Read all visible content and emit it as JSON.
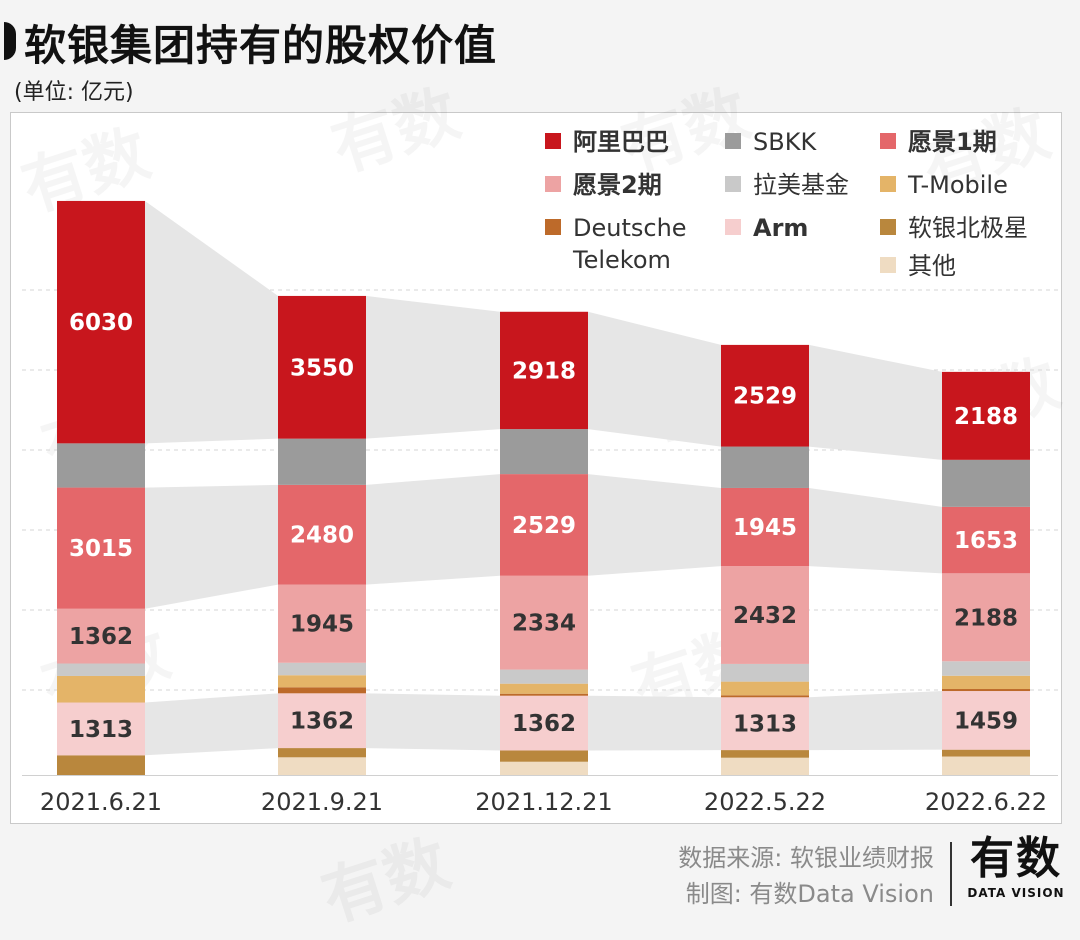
{
  "header": {
    "title": "软银集团持有的股权价值",
    "unit": "(单位: 亿元)"
  },
  "legend": {
    "items": [
      {
        "key": "alibaba",
        "label": "阿里巴巴",
        "color": "#c8161d",
        "bold": true
      },
      {
        "key": "sbkk",
        "label": "SBKK",
        "color": "#9b9b9b",
        "bold": false
      },
      {
        "key": "vision1",
        "label": "愿景1期",
        "color": "#e4676a",
        "bold": true
      },
      {
        "key": "vision2",
        "label": "愿景2期",
        "color": "#eda3a3",
        "bold": true
      },
      {
        "key": "latam",
        "label": "拉美基金",
        "color": "#c9c9c9",
        "bold": false
      },
      {
        "key": "tmobile",
        "label": "T-Mobile",
        "color": "#e4b468",
        "bold": false
      },
      {
        "key": "dt",
        "label": "Deutsche\nTelekom",
        "color": "#bd6a2a",
        "bold": false
      },
      {
        "key": "arm",
        "label": "Arm",
        "color": "#f6cece",
        "bold": true
      },
      {
        "key": "northstar",
        "label": "软银北极星",
        "color": "#b9873d",
        "bold": false
      },
      {
        "key": "other",
        "label": "其他",
        "color": "#efdcc2",
        "bold": false
      }
    ]
  },
  "chart_data": {
    "type": "bar",
    "stacked": true,
    "title": "软银集团持有的股权价值",
    "unit": "亿元",
    "categories": [
      "2021.6.21",
      "2021.9.21",
      "2021.12.21",
      "2022.5.22",
      "2022.6.22"
    ],
    "series": [
      {
        "name": "其他",
        "key": "other",
        "values": [
          0,
          440,
          330,
          430,
          460
        ],
        "labeled": false
      },
      {
        "name": "软银北极星",
        "key": "northstar",
        "values": [
          490,
          230,
          280,
          190,
          170
        ],
        "labeled": false
      },
      {
        "name": "Arm",
        "key": "arm",
        "values": [
          1313,
          1362,
          1362,
          1313,
          1459
        ],
        "labeled": true
      },
      {
        "name": "Deutsche Telekom",
        "key": "dt",
        "values": [
          0,
          150,
          50,
          50,
          50
        ],
        "labeled": false
      },
      {
        "name": "T-Mobile",
        "key": "tmobile",
        "values": [
          660,
          300,
          250,
          340,
          330
        ],
        "labeled": false
      },
      {
        "name": "拉美基金",
        "key": "latam",
        "values": [
          310,
          310,
          350,
          440,
          360
        ],
        "labeled": false
      },
      {
        "name": "愿景2期",
        "key": "vision2",
        "values": [
          1362,
          1945,
          2334,
          2432,
          2188
        ],
        "labeled": true
      },
      {
        "name": "愿景1期",
        "key": "vision1",
        "values": [
          3015,
          2480,
          2529,
          1945,
          1653
        ],
        "labeled": true
      },
      {
        "name": "SBKK",
        "key": "sbkk",
        "values": [
          1100,
          1150,
          1120,
          1030,
          1170
        ],
        "labeled": false
      },
      {
        "name": "阿里巴巴",
        "key": "alibaba",
        "values": [
          6030,
          3550,
          2918,
          2529,
          2188
        ],
        "labeled": true
      }
    ],
    "ymax": 15000,
    "grid": true
  },
  "footer": {
    "source": "数据来源: 软银业绩财报",
    "credit": "制图: 有数Data Vision",
    "logo_text": "有数",
    "logo_sub": "DATA VISION"
  },
  "watermark": {
    "text": "有数"
  }
}
